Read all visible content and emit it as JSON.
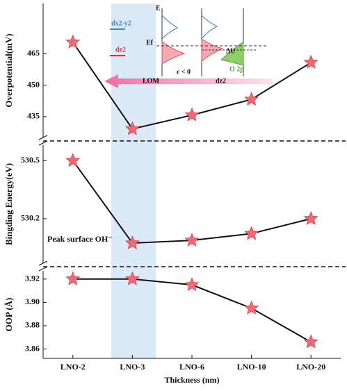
{
  "chart_data": [
    {
      "type": "line",
      "ylabel": "Overpotential(mV)",
      "categories": [
        "LNO-2",
        "LNO-3",
        "LNO-6",
        "LNO-10",
        "LNO-20"
      ],
      "values": [
        470.5,
        429.1,
        435.7,
        443.2,
        460.8
      ],
      "color": "#f06a74",
      "ylim": [
        425,
        489
      ],
      "yticks": [
        435,
        450,
        465
      ]
    },
    {
      "type": "line",
      "ylabel": "Bingding Energy(eV)",
      "annotation": "Peak surface OH⁻",
      "categories": [
        "LNO-2",
        "LNO-3",
        "LNO-6",
        "LNO-10",
        "LNO-20"
      ],
      "values": [
        530.5,
        530.074,
        530.088,
        530.123,
        530.2
      ],
      "color": "#f06a74",
      "ylim": [
        529.97,
        530.58
      ],
      "yticks": [
        530.2,
        530.5
      ]
    },
    {
      "type": "line",
      "ylabel": "OOP (Å)",
      "xlabel": "Thickness (nm)",
      "categories": [
        "LNO-2",
        "LNO-3",
        "LNO-6",
        "LNO-10",
        "LNO-20"
      ],
      "values": [
        3.92,
        3.92,
        3.915,
        3.895,
        3.866
      ],
      "color": "#f06a74",
      "ylim": [
        3.852,
        3.927
      ],
      "yticks": [
        3.86,
        3.88,
        {
          "value": 3.9,
          "label": "3.90"
        },
        3.92
      ]
    }
  ],
  "inset": {
    "labels": [
      "E",
      "dx2-y2",
      "dz2",
      "Ef",
      "ΔU",
      "ε < 0",
      "O 2p",
      "LOM",
      "dz2"
    ]
  }
}
